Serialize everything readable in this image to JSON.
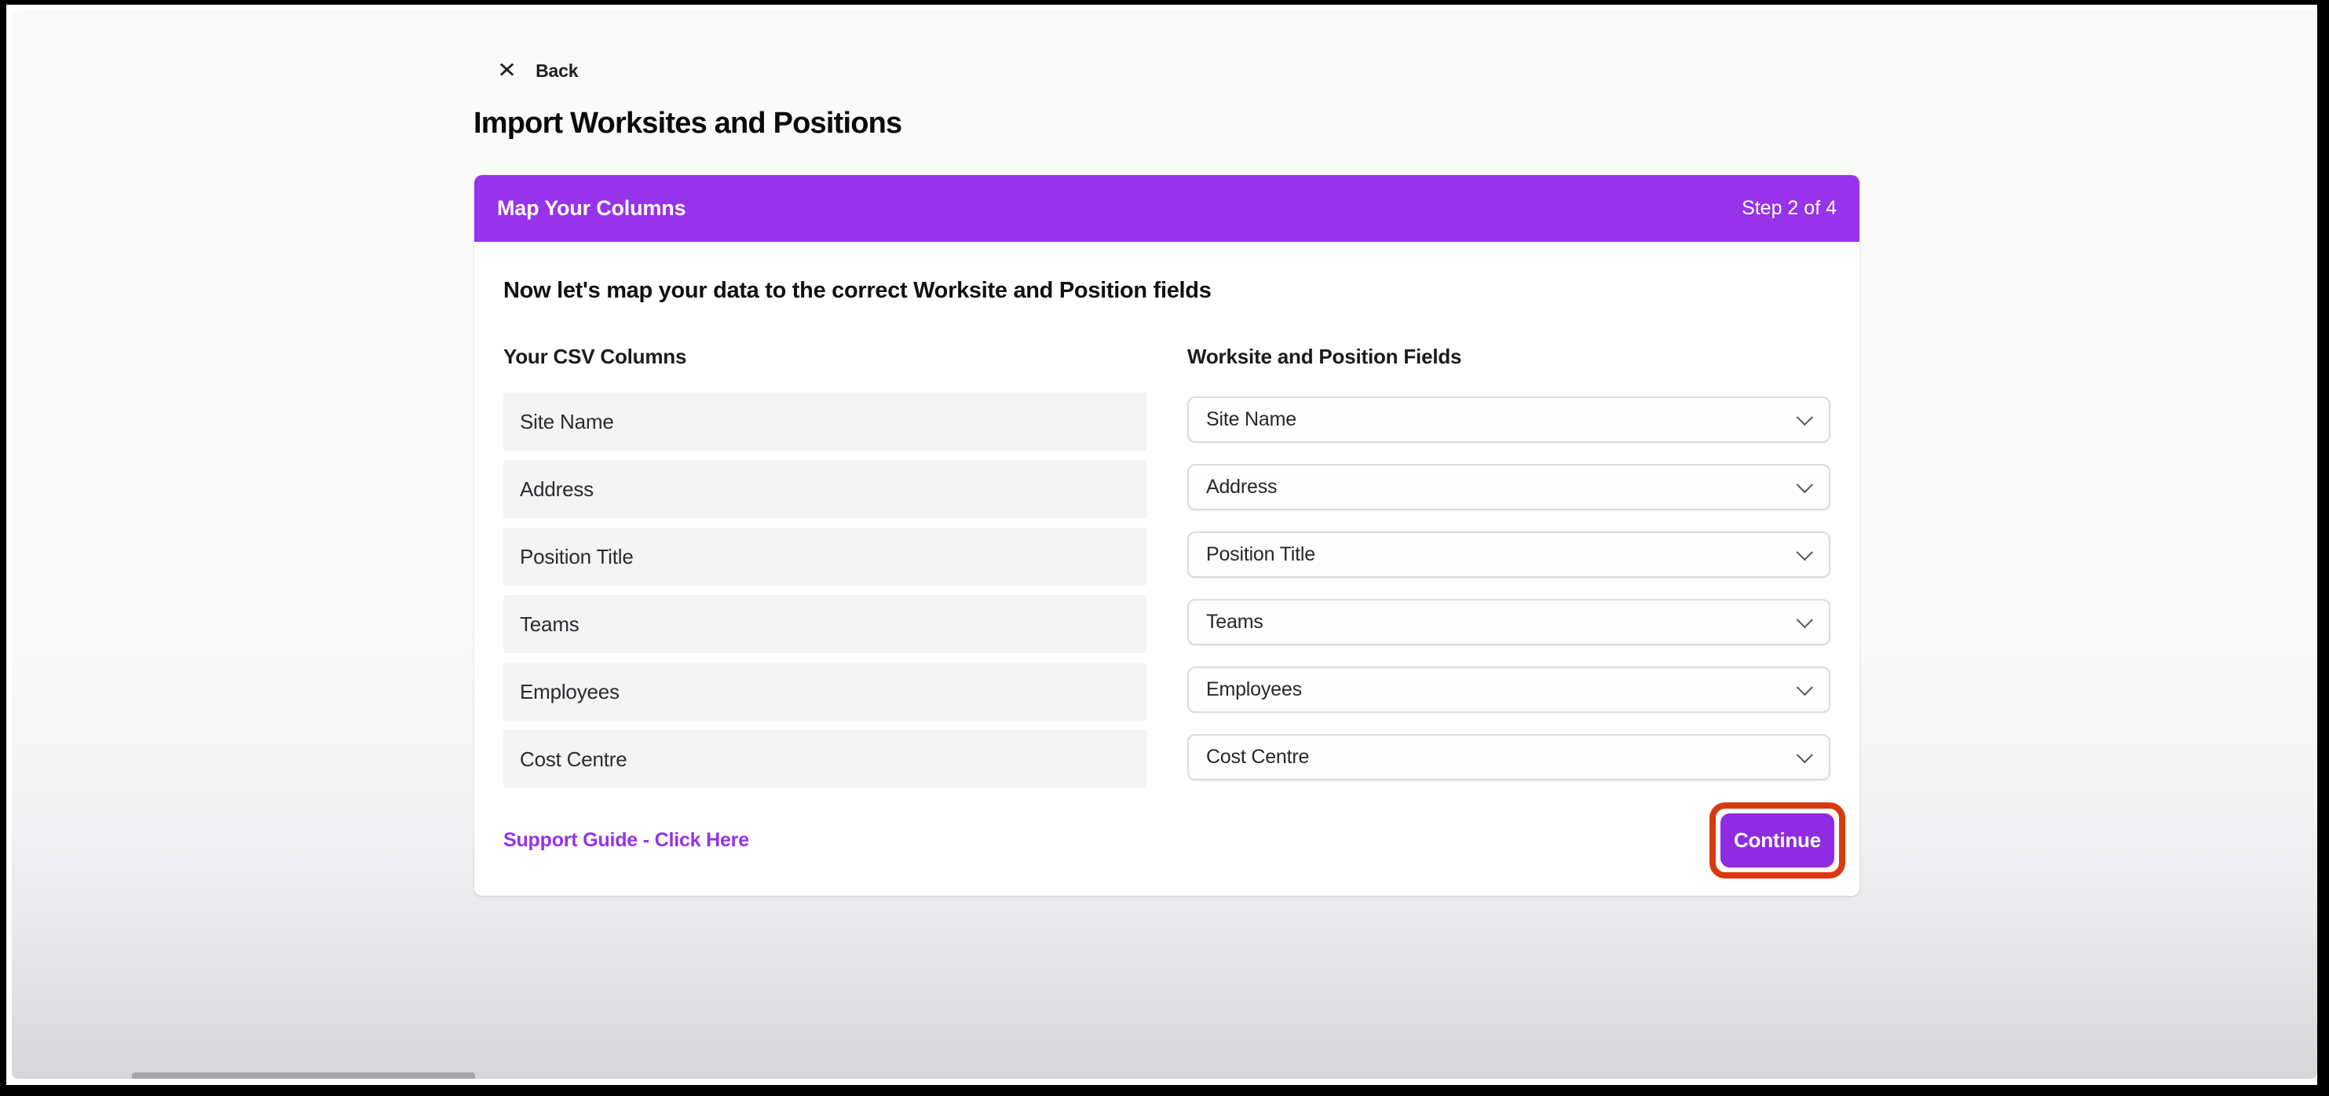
{
  "page": {
    "close_icon": "✕",
    "back_label": "Back",
    "title": "Import Worksites and Positions"
  },
  "card": {
    "header": {
      "title": "Map Your Columns",
      "step": "Step 2 of 4"
    },
    "instruction": "Now let's map your data to the correct Worksite and Position fields",
    "left_column_header": "Your CSV Columns",
    "right_column_header": "Worksite and Position Fields",
    "csv_columns": [
      "Site Name",
      "Address",
      "Position Title",
      "Teams",
      "Employees",
      "Cost Centre"
    ],
    "mapped_fields": [
      "Site Name",
      "Address",
      "Position Title",
      "Teams",
      "Employees",
      "Cost Centre"
    ],
    "support_link": "Support Guide - Click Here",
    "continue_label": "Continue"
  },
  "icons": {
    "dropdown_chevron": "chevron-down"
  },
  "colors": {
    "accent_purple": "#9733ea",
    "button_purple": "#8f2be3",
    "link_purple": "#9533eb",
    "annotation_red": "#d83a10",
    "row_background": "#f4f4f5",
    "page_background": "#fafafa"
  }
}
